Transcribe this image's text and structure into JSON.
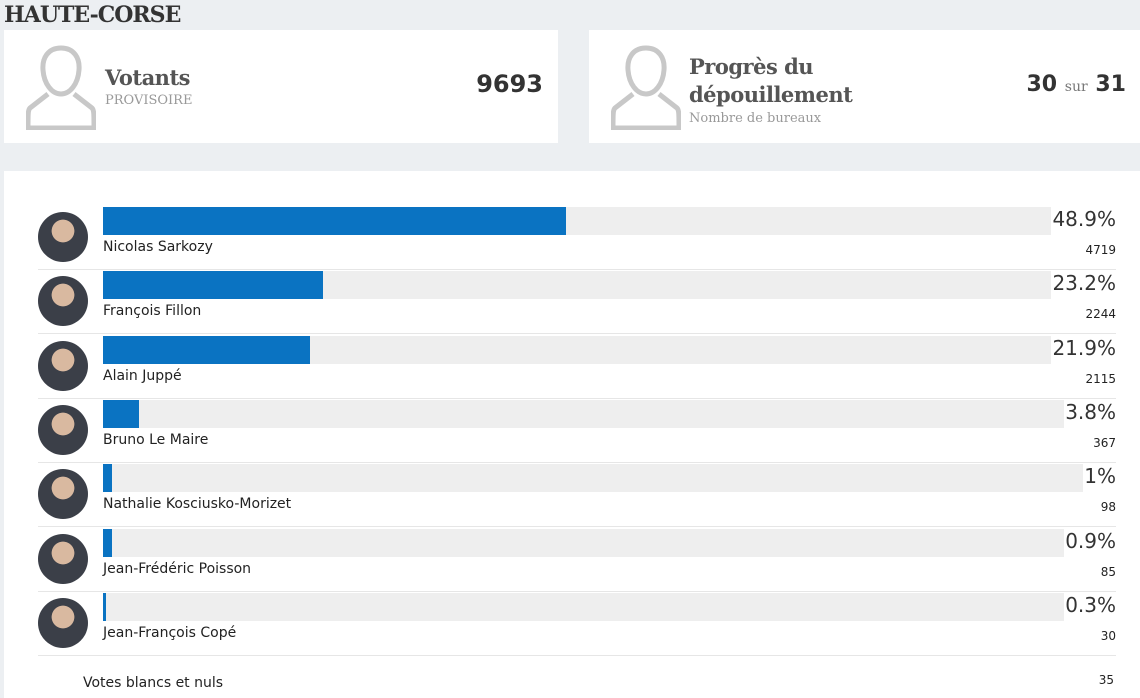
{
  "header": {
    "title": "HAUTE-CORSE"
  },
  "cards": [
    {
      "title": "Votants",
      "subtitle": "PROVISOIRE",
      "value": 9693
    },
    {
      "title": "Progrès du dépouillement",
      "subtitle": "Nombre de bureaux",
      "done": 30,
      "separator": "sur",
      "total": 31
    }
  ],
  "results": {
    "color": "#0a73c2",
    "rows": [
      {
        "name": "Nicolas Sarkozy",
        "percent": 48.9,
        "percent_label": "48.9%",
        "votes": 4719
      },
      {
        "name": "François Fillon",
        "percent": 23.2,
        "percent_label": "23.2%",
        "votes": 2244
      },
      {
        "name": "Alain Juppé",
        "percent": 21.9,
        "percent_label": "21.9%",
        "votes": 2115
      },
      {
        "name": "Bruno Le Maire",
        "percent": 3.8,
        "percent_label": "3.8%",
        "votes": 367
      },
      {
        "name": "Nathalie Kosciusko-Morizet",
        "percent": 1,
        "percent_label": "1%",
        "votes": 98
      },
      {
        "name": "Jean-Frédéric Poisson",
        "percent": 0.9,
        "percent_label": "0.9%",
        "votes": 85
      },
      {
        "name": "Jean-François Copé",
        "percent": 0.3,
        "percent_label": "0.3%",
        "votes": 30
      }
    ]
  },
  "blank": {
    "label": "Votes blancs et nuls",
    "votes": 35
  }
}
